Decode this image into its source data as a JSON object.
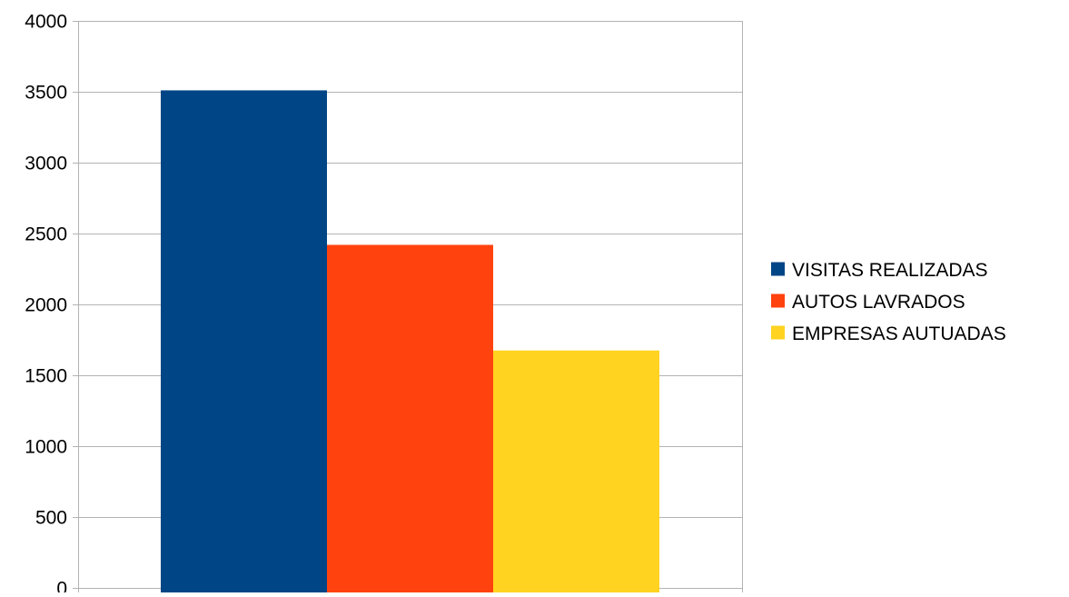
{
  "chart_data": {
    "type": "bar",
    "title": "",
    "xlabel": "",
    "ylabel": "",
    "ylim": [
      0,
      4000
    ],
    "yticks": [
      0,
      500,
      1000,
      1500,
      2000,
      2500,
      3000,
      3500,
      4000
    ],
    "grid": true,
    "legend_position": "right",
    "series": [
      {
        "name": "VISITAS REALIZADAS",
        "value": 3510,
        "color": "#004586"
      },
      {
        "name": "AUTOS LAVRADOS",
        "value": 2420,
        "color": "#ff420e"
      },
      {
        "name": "EMPRESAS AUTUADAS",
        "value": 1675,
        "color": "#ffd320"
      }
    ]
  }
}
